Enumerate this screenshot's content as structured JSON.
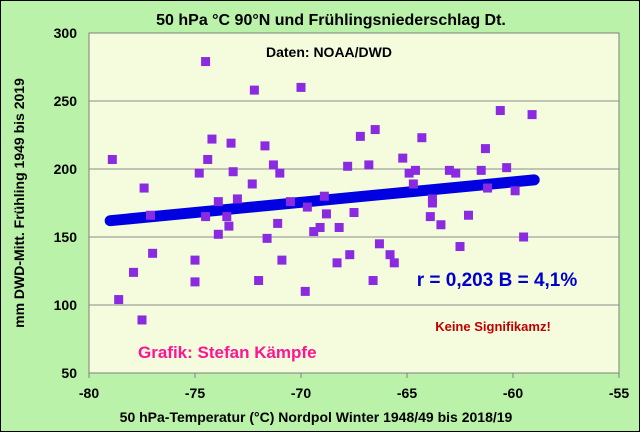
{
  "chart_data": {
    "type": "scatter",
    "title": "50 hPa °C 90°N und Frühlingsniederschlag Dt.",
    "xlabel": "50 hPa-Temperatur (°C) Nordpol Winter 1948/49 bis 2018/19",
    "ylabel": "mm DWD-Mitt. Frühling 1949 bis 2019",
    "xlim": [
      -80,
      -55
    ],
    "ylim": [
      50,
      300
    ],
    "xticks": [
      -80,
      -75,
      -70,
      -65,
      -60,
      -55
    ],
    "yticks": [
      50,
      100,
      150,
      200,
      250,
      300
    ],
    "xtick_labels": [
      "-80",
      "-75",
      "-70",
      "-65",
      "-60",
      "-55"
    ],
    "ytick_labels": [
      "50",
      "100",
      "150",
      "200",
      "250",
      "300"
    ],
    "grid": true,
    "points": [
      {
        "x": -78.9,
        "y": 207
      },
      {
        "x": -78.6,
        "y": 104
      },
      {
        "x": -77.9,
        "y": 124
      },
      {
        "x": -77.5,
        "y": 89
      },
      {
        "x": -77.4,
        "y": 186
      },
      {
        "x": -77.1,
        "y": 166
      },
      {
        "x": -77.0,
        "y": 138
      },
      {
        "x": -75.0,
        "y": 117
      },
      {
        "x": -75.0,
        "y": 133
      },
      {
        "x": -74.8,
        "y": 197
      },
      {
        "x": -74.5,
        "y": 165
      },
      {
        "x": -74.5,
        "y": 279
      },
      {
        "x": -74.4,
        "y": 207
      },
      {
        "x": -74.2,
        "y": 222
      },
      {
        "x": -73.9,
        "y": 176
      },
      {
        "x": -73.9,
        "y": 152
      },
      {
        "x": -73.5,
        "y": 165
      },
      {
        "x": -73.4,
        "y": 158
      },
      {
        "x": -73.3,
        "y": 219
      },
      {
        "x": -73.2,
        "y": 198
      },
      {
        "x": -73.0,
        "y": 178
      },
      {
        "x": -72.3,
        "y": 189
      },
      {
        "x": -72.2,
        "y": 258
      },
      {
        "x": -72.0,
        "y": 118
      },
      {
        "x": -71.7,
        "y": 217
      },
      {
        "x": -71.6,
        "y": 149
      },
      {
        "x": -71.3,
        "y": 203
      },
      {
        "x": -71.1,
        "y": 160
      },
      {
        "x": -71.0,
        "y": 197
      },
      {
        "x": -70.9,
        "y": 133
      },
      {
        "x": -70.5,
        "y": 176
      },
      {
        "x": -70.0,
        "y": 260
      },
      {
        "x": -69.8,
        "y": 110
      },
      {
        "x": -69.7,
        "y": 172
      },
      {
        "x": -69.4,
        "y": 154
      },
      {
        "x": -69.1,
        "y": 157
      },
      {
        "x": -68.9,
        "y": 180
      },
      {
        "x": -68.8,
        "y": 167
      },
      {
        "x": -68.3,
        "y": 131
      },
      {
        "x": -68.2,
        "y": 157
      },
      {
        "x": -67.8,
        "y": 202
      },
      {
        "x": -67.7,
        "y": 137
      },
      {
        "x": -67.5,
        "y": 168
      },
      {
        "x": -67.2,
        "y": 224
      },
      {
        "x": -66.8,
        "y": 203
      },
      {
        "x": -66.6,
        "y": 118
      },
      {
        "x": -66.5,
        "y": 229
      },
      {
        "x": -66.3,
        "y": 145
      },
      {
        "x": -65.8,
        "y": 137
      },
      {
        "x": -65.6,
        "y": 131
      },
      {
        "x": -65.2,
        "y": 208
      },
      {
        "x": -64.9,
        "y": 197
      },
      {
        "x": -64.7,
        "y": 189
      },
      {
        "x": -64.6,
        "y": 199
      },
      {
        "x": -64.3,
        "y": 223
      },
      {
        "x": -63.9,
        "y": 165
      },
      {
        "x": -63.8,
        "y": 178
      },
      {
        "x": -63.4,
        "y": 159
      },
      {
        "x": -63.0,
        "y": 199
      },
      {
        "x": -62.7,
        "y": 197
      },
      {
        "x": -62.5,
        "y": 143
      },
      {
        "x": -62.1,
        "y": 166
      },
      {
        "x": -61.5,
        "y": 199
      },
      {
        "x": -61.3,
        "y": 215
      },
      {
        "x": -61.2,
        "y": 186
      },
      {
        "x": -60.6,
        "y": 243
      },
      {
        "x": -60.3,
        "y": 201
      },
      {
        "x": -59.9,
        "y": 184
      },
      {
        "x": -59.5,
        "y": 150
      },
      {
        "x": -59.1,
        "y": 240
      },
      {
        "x": -63.8,
        "y": 175
      }
    ],
    "series": [
      {
        "values": []
      }
    ],
    "trendline": {
      "x": [
        -79,
        -59
      ],
      "y": [
        162,
        192
      ]
    },
    "annotations": {
      "source": "Daten: NOAA/DWD",
      "correlation": "r = 0,203 B = 4,1%",
      "significance": "Keine Signifikamz!",
      "credit": "Grafik: Stefan Kämpfe"
    },
    "colors": {
      "background": "#b9f2a8",
      "plot_area": "#f5fbdd",
      "points": "#8a2be2",
      "trendline": "#0000e0",
      "correlation_text": "#0000cc",
      "significance_text": "#c00000",
      "credit_text": "#ff1493"
    }
  }
}
